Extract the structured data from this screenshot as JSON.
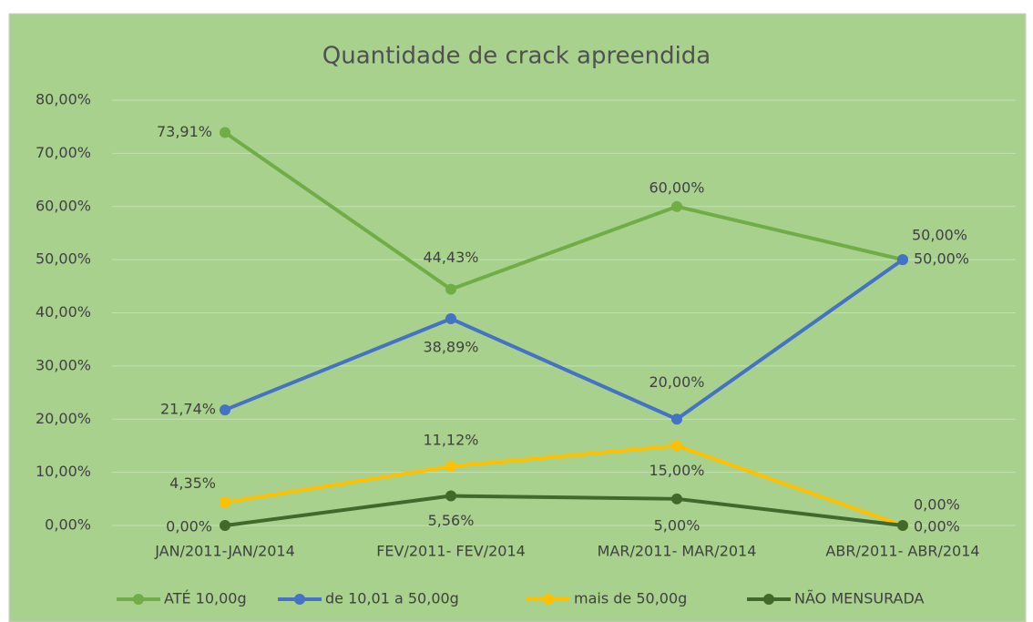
{
  "chart_data": {
    "type": "line",
    "title": "Quantidade de crack apreendida",
    "categories": [
      "JAN/2011-JAN/2014",
      "FEV/2011- FEV/2014",
      "MAR/2011- MAR/2014",
      "ABR/2011- ABR/2014"
    ],
    "series": [
      {
        "name": "ATÉ 10,00g",
        "color": "#70ad47",
        "values": [
          73.91,
          44.43,
          60,
          50
        ],
        "value_labels": [
          "73,91%",
          "44,43%",
          "60,00%",
          "50,00%"
        ]
      },
      {
        "name": "de 10,01 a 50,00g",
        "color": "#4472c4",
        "values": [
          21.74,
          38.89,
          20,
          50
        ],
        "value_labels": [
          "21,74%",
          "38,89%",
          "20,00%",
          "50,00%"
        ]
      },
      {
        "name": "mais de 50,00g",
        "color": "#ffc000",
        "values": [
          4.35,
          11.12,
          15,
          0
        ],
        "value_labels": [
          "4,35%",
          "11,12%",
          "15,00%",
          "0,00%"
        ]
      },
      {
        "name": "NÃO MENSURADA",
        "color": "#43682b",
        "values": [
          0,
          5.56,
          5,
          0
        ],
        "value_labels": [
          "0,00%",
          "5,56%",
          "5,00%",
          "0,00%"
        ]
      }
    ],
    "ylim": [
      0,
      80
    ],
    "yticks": [
      {
        "value": 0,
        "label": "0,00%"
      },
      {
        "value": 10,
        "label": "10,00%"
      },
      {
        "value": 20,
        "label": "20,00%"
      },
      {
        "value": 30,
        "label": "30,00%"
      },
      {
        "value": 40,
        "label": "40,00%"
      },
      {
        "value": 50,
        "label": "50,00%"
      },
      {
        "value": 60,
        "label": "60,00%"
      },
      {
        "value": 70,
        "label": "70,00%"
      },
      {
        "value": 80,
        "label": "80,00%"
      }
    ],
    "grid": true,
    "legend": "bottom"
  }
}
